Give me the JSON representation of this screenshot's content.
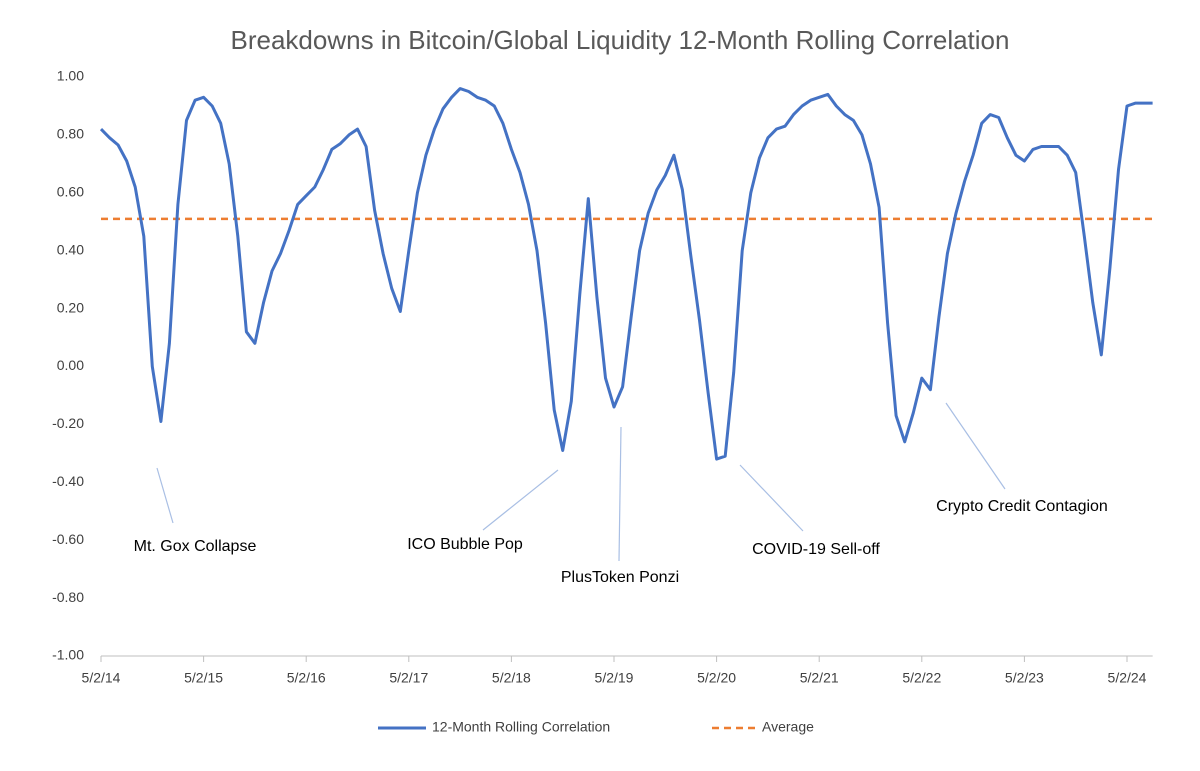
{
  "chart_data": {
    "type": "line",
    "title": "Breakdowns in Bitcoin/Global Liquidity 12-Month Rolling Correlation",
    "x": [
      "5/2/14",
      "6/2/14",
      "7/2/14",
      "8/2/14",
      "9/2/14",
      "10/2/14",
      "11/2/14",
      "12/2/14",
      "1/2/15",
      "2/2/15",
      "3/2/15",
      "4/2/15",
      "5/2/15",
      "6/2/15",
      "7/2/15",
      "8/2/15",
      "9/2/15",
      "10/2/15",
      "11/2/15",
      "12/2/15",
      "1/2/16",
      "2/2/16",
      "3/2/16",
      "4/2/16",
      "5/2/16",
      "6/2/16",
      "7/2/16",
      "8/2/16",
      "9/2/16",
      "10/2/16",
      "11/2/16",
      "12/2/16",
      "1/2/17",
      "2/2/17",
      "3/2/17",
      "4/2/17",
      "5/2/17",
      "6/2/17",
      "7/2/17",
      "8/2/17",
      "9/2/17",
      "10/2/17",
      "11/2/17",
      "12/2/17",
      "1/2/18",
      "2/2/18",
      "3/2/18",
      "4/2/18",
      "5/2/18",
      "6/2/18",
      "7/2/18",
      "8/2/18",
      "9/2/18",
      "10/2/18",
      "11/2/18",
      "12/2/18",
      "1/2/19",
      "2/2/19",
      "3/2/19",
      "4/2/19",
      "5/2/19",
      "6/2/19",
      "7/2/19",
      "8/2/19",
      "9/2/19",
      "10/2/19",
      "11/2/19",
      "12/2/19",
      "1/2/20",
      "2/2/20",
      "3/2/20",
      "4/2/20",
      "5/2/20",
      "6/2/20",
      "7/2/20",
      "8/2/20",
      "9/2/20",
      "10/2/20",
      "11/2/20",
      "12/2/20",
      "1/2/21",
      "2/2/21",
      "3/2/21",
      "4/2/21",
      "5/2/21",
      "6/2/21",
      "7/2/21",
      "8/2/21",
      "9/2/21",
      "10/2/21",
      "11/2/21",
      "12/2/21",
      "1/2/22",
      "2/2/22",
      "3/2/22",
      "4/2/22",
      "5/2/22",
      "6/2/22",
      "7/2/22",
      "8/2/22",
      "9/2/22",
      "10/2/22",
      "11/2/22",
      "12/2/22",
      "1/2/23",
      "2/2/23",
      "3/2/23",
      "4/2/23",
      "5/2/23",
      "6/2/23",
      "7/2/23",
      "8/2/23",
      "9/2/23",
      "10/2/23",
      "11/2/23",
      "12/2/23",
      "1/2/24",
      "2/2/24",
      "3/2/24",
      "4/2/24",
      "5/2/24",
      "6/2/24",
      "7/2/24",
      "8/2/24"
    ],
    "series": [
      {
        "name": "12-Month Rolling Correlation",
        "color": "#4472c4",
        "values": [
          0.82,
          0.79,
          0.765,
          0.71,
          0.62,
          0.45,
          0.0,
          -0.19,
          0.08,
          0.56,
          0.85,
          0.92,
          0.93,
          0.9,
          0.84,
          0.7,
          0.45,
          0.12,
          0.08,
          0.22,
          0.33,
          0.39,
          0.47,
          0.56,
          0.59,
          0.62,
          0.68,
          0.75,
          0.77,
          0.8,
          0.82,
          0.76,
          0.54,
          0.39,
          0.27,
          0.19,
          0.4,
          0.6,
          0.73,
          0.82,
          0.89,
          0.93,
          0.96,
          0.95,
          0.93,
          0.92,
          0.9,
          0.84,
          0.75,
          0.67,
          0.56,
          0.4,
          0.15,
          -0.15,
          -0.29,
          -0.12,
          0.25,
          0.58,
          0.24,
          -0.04,
          -0.14,
          -0.07,
          0.17,
          0.4,
          0.53,
          0.61,
          0.66,
          0.73,
          0.61,
          0.38,
          0.16,
          -0.09,
          -0.32,
          -0.31,
          -0.02,
          0.4,
          0.6,
          0.72,
          0.79,
          0.82,
          0.83,
          0.87,
          0.9,
          0.92,
          0.93,
          0.94,
          0.9,
          0.87,
          0.85,
          0.8,
          0.7,
          0.55,
          0.15,
          -0.17,
          -0.26,
          -0.16,
          -0.04,
          -0.08,
          0.17,
          0.39,
          0.53,
          0.64,
          0.73,
          0.84,
          0.87,
          0.86,
          0.79,
          0.73,
          0.71,
          0.75,
          0.76,
          0.76,
          0.76,
          0.73,
          0.67,
          0.45,
          0.22,
          0.04,
          0.34,
          0.68,
          0.9,
          0.91,
          0.91,
          0.91
        ]
      }
    ],
    "reference_lines": [
      {
        "name": "Average",
        "value": 0.51,
        "color": "#ed7d31",
        "dashed": true
      }
    ],
    "xlim": [
      "5/2/14",
      "8/2/24"
    ],
    "xticks": [
      "5/2/14",
      "5/2/15",
      "5/2/16",
      "5/2/17",
      "5/2/18",
      "5/2/19",
      "5/2/20",
      "5/2/21",
      "5/2/22",
      "5/2/23",
      "5/2/24"
    ],
    "ylim": [
      -1,
      1
    ],
    "yticks": [
      {
        "value": -1,
        "label": "-1.00"
      },
      {
        "value": -0.8,
        "label": "-0.80"
      },
      {
        "value": -0.6,
        "label": "-0.60"
      },
      {
        "value": -0.4,
        "label": "-0.40"
      },
      {
        "value": -0.2,
        "label": "-0.20"
      },
      {
        "value": 0,
        "label": "0.00"
      },
      {
        "value": 0.2,
        "label": "0.20"
      },
      {
        "value": 0.4,
        "label": "0.40"
      },
      {
        "value": 0.6,
        "label": "0.60"
      },
      {
        "value": 0.8,
        "label": "0.80"
      },
      {
        "value": 1,
        "label": "1.00"
      }
    ],
    "annotations": [
      "Mt. Gox Collapse",
      "ICO Bubble Pop",
      "PlusToken Ponzi",
      "COVID-19 Sell-off",
      "Crypto Credit Contagion"
    ],
    "legend": "bottom"
  }
}
